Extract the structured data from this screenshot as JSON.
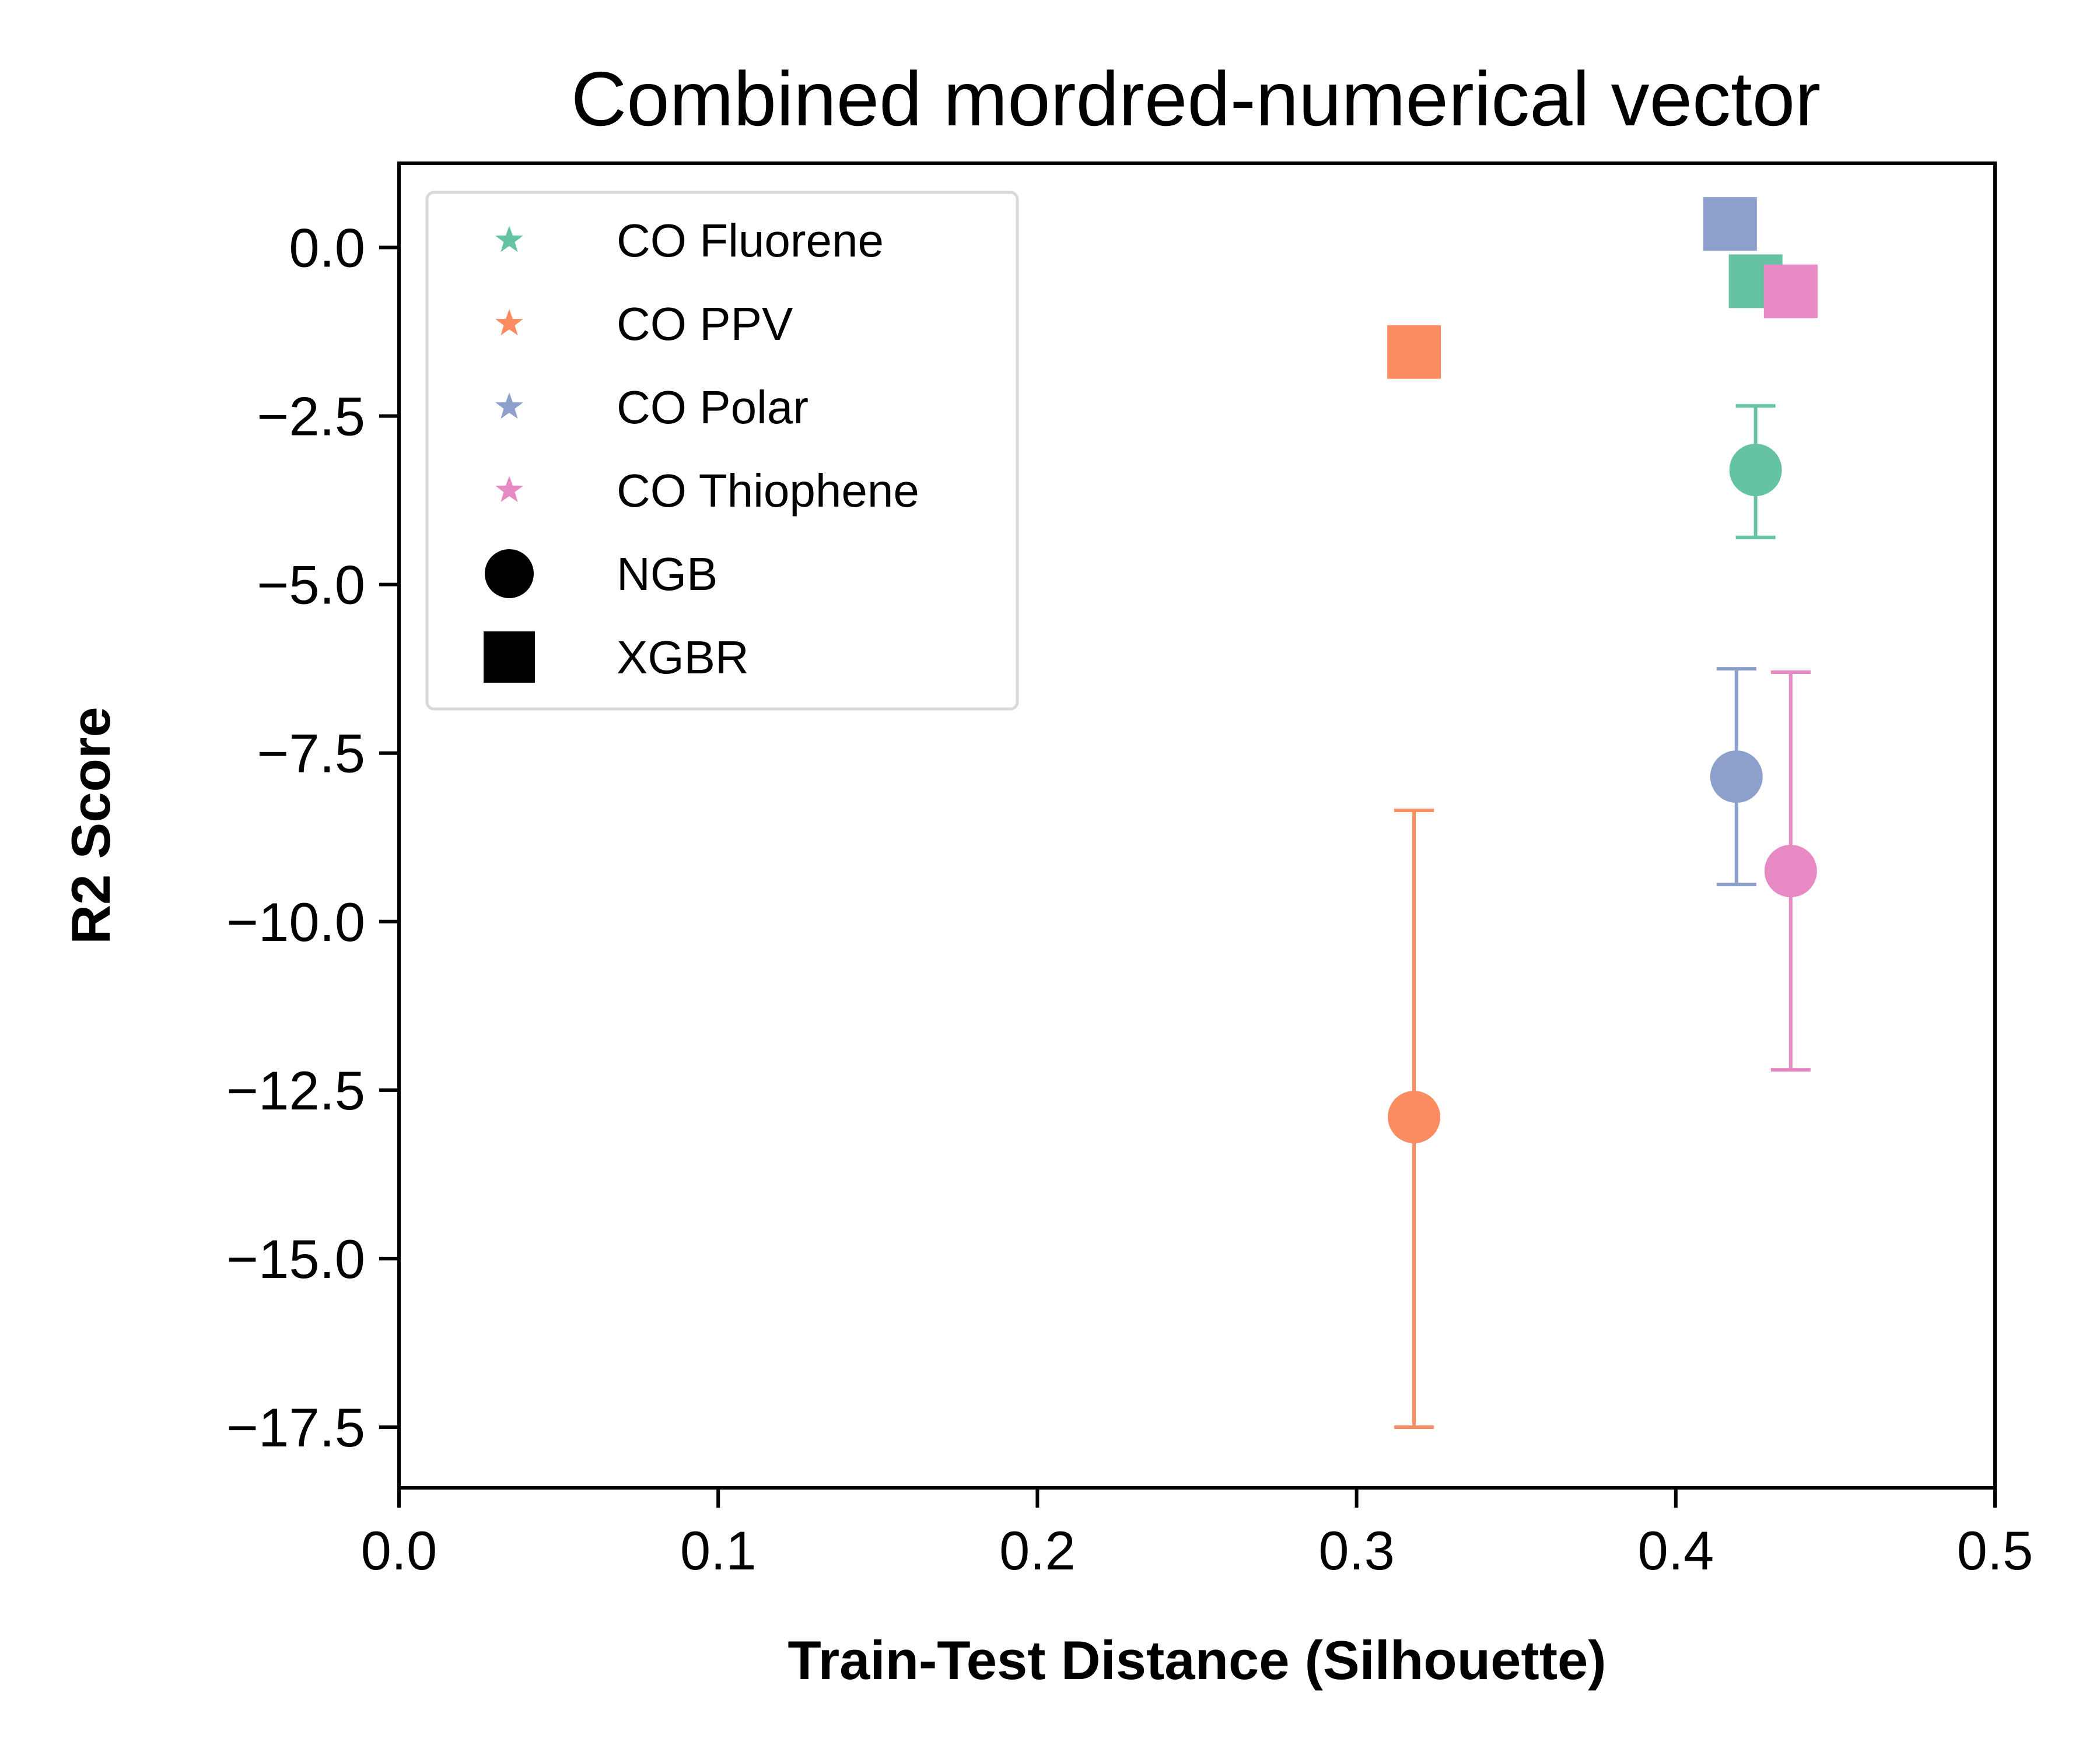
{
  "chart_data": {
    "type": "scatter",
    "title": "Combined mordred-numerical vector",
    "xlabel": "Train-Test Distance (Silhouette)",
    "ylabel": "R2 Score",
    "xlim": [
      0.0,
      0.5
    ],
    "ylim": [
      -18.4,
      1.25
    ],
    "x_ticks": [
      0.0,
      0.1,
      0.2,
      0.3,
      0.4,
      0.5
    ],
    "x_tick_labels": [
      "0.0",
      "0.1",
      "0.2",
      "0.3",
      "0.4",
      "0.5"
    ],
    "y_ticks": [
      0.0,
      -2.5,
      -5.0,
      -7.5,
      -10.0,
      -12.5,
      -15.0,
      -17.5
    ],
    "y_tick_labels": [
      "0.0",
      "−2.5",
      "−5.0",
      "−7.5",
      "−10.0",
      "−12.5",
      "−15.0",
      "−17.5"
    ],
    "grid": false,
    "legend_position": "top-left",
    "legend": [
      {
        "label": "CO Fluorene",
        "marker": "star",
        "color": "#66c2a5"
      },
      {
        "label": "CO PPV",
        "marker": "star",
        "color": "#fc8d62"
      },
      {
        "label": "CO Polar",
        "marker": "star",
        "color": "#8da0cb"
      },
      {
        "label": "CO Thiophene",
        "marker": "star",
        "color": "#e78ac3"
      },
      {
        "label": "NGB",
        "marker": "circle",
        "color": "#000000"
      },
      {
        "label": "XGBR",
        "marker": "square",
        "color": "#000000"
      }
    ],
    "series": [
      {
        "group": "CO Fluorene",
        "model": "NGB",
        "marker": "circle",
        "color": "#66c2a5",
        "x": 0.425,
        "y": -3.3,
        "yerr_low": -4.3,
        "yerr_high": -2.35
      },
      {
        "group": "CO PPV",
        "model": "NGB",
        "marker": "circle",
        "color": "#fc8d62",
        "x": 0.318,
        "y": -12.9,
        "yerr_low": -17.5,
        "yerr_high": -8.35
      },
      {
        "group": "CO Polar",
        "model": "NGB",
        "marker": "circle",
        "color": "#8da0cb",
        "x": 0.419,
        "y": -7.85,
        "yerr_low": -9.45,
        "yerr_high": -6.25
      },
      {
        "group": "CO Thiophene",
        "model": "NGB",
        "marker": "circle",
        "color": "#e78ac3",
        "x": 0.436,
        "y": -9.25,
        "yerr_low": -12.2,
        "yerr_high": -6.3
      },
      {
        "group": "CO PPV",
        "model": "XGBR",
        "marker": "square",
        "color": "#fc8d62",
        "x": 0.318,
        "y": -1.55
      },
      {
        "group": "CO Polar",
        "model": "XGBR",
        "marker": "square",
        "color": "#8da0cb",
        "x": 0.417,
        "y": 0.35
      },
      {
        "group": "CO Fluorene",
        "model": "XGBR",
        "marker": "square",
        "color": "#66c2a5",
        "x": 0.425,
        "y": -0.5
      },
      {
        "group": "CO Thiophene",
        "model": "XGBR",
        "marker": "square",
        "color": "#e78ac3",
        "x": 0.436,
        "y": -0.65
      }
    ]
  }
}
